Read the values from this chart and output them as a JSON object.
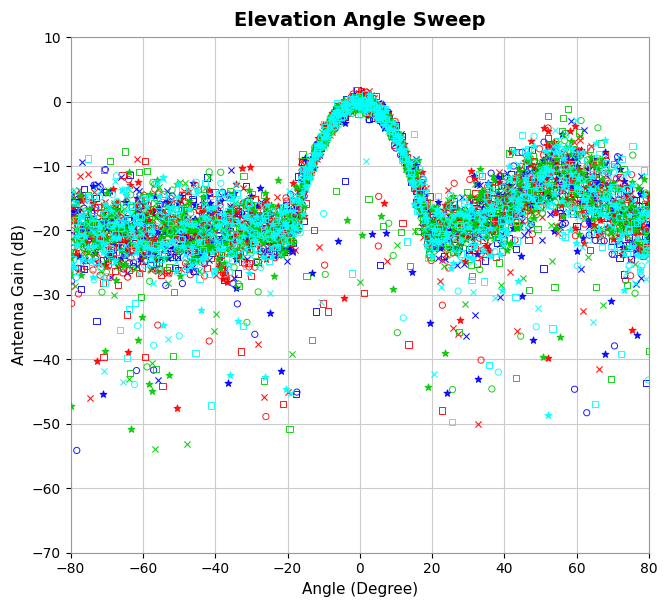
{
  "title": "Elevation Angle Sweep",
  "xlabel": "Angle (Degree)",
  "ylabel": "Antenna Gain (dB)",
  "xlim": [
    -80,
    80
  ],
  "ylim": [
    -70,
    10
  ],
  "xticks": [
    -80,
    -60,
    -40,
    -20,
    0,
    20,
    40,
    60,
    80
  ],
  "yticks": [
    -70,
    -60,
    -50,
    -40,
    -30,
    -20,
    -10,
    0,
    10
  ],
  "colors": [
    "blue",
    "red",
    "#00cc00",
    "cyan"
  ],
  "markers": [
    "s",
    "o",
    "x",
    "*"
  ],
  "marker_sizes": [
    20,
    20,
    20,
    25
  ],
  "n_points": 300,
  "seed": 7,
  "bg_color": "white",
  "grid_color": "#cccccc",
  "title_fontsize": 14,
  "label_fontsize": 11,
  "tick_fontsize": 10
}
